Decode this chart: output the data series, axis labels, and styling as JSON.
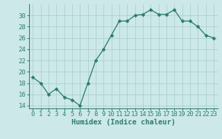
{
  "x": [
    0,
    1,
    2,
    3,
    4,
    5,
    6,
    7,
    8,
    9,
    10,
    11,
    12,
    13,
    14,
    15,
    16,
    17,
    18,
    19,
    20,
    21,
    22,
    23
  ],
  "y": [
    19,
    18,
    16,
    17,
    15.5,
    15,
    14,
    18,
    22,
    24,
    26.5,
    29,
    29,
    30,
    30.2,
    31,
    30.2,
    30.2,
    31,
    29,
    29,
    28,
    26.5,
    26
  ],
  "line_color": "#2e7d6e",
  "marker": "D",
  "marker_size": 2.5,
  "line_width": 1.0,
  "xlabel": "Humidex (Indice chaleur)",
  "xlim": [
    -0.5,
    23.5
  ],
  "ylim": [
    13.5,
    32
  ],
  "yticks": [
    14,
    16,
    18,
    20,
    22,
    24,
    26,
    28,
    30
  ],
  "background_color": "#cce8e8",
  "grid_color": "#aacfcf",
  "tick_fontsize": 6.5,
  "xlabel_fontsize": 7.5
}
